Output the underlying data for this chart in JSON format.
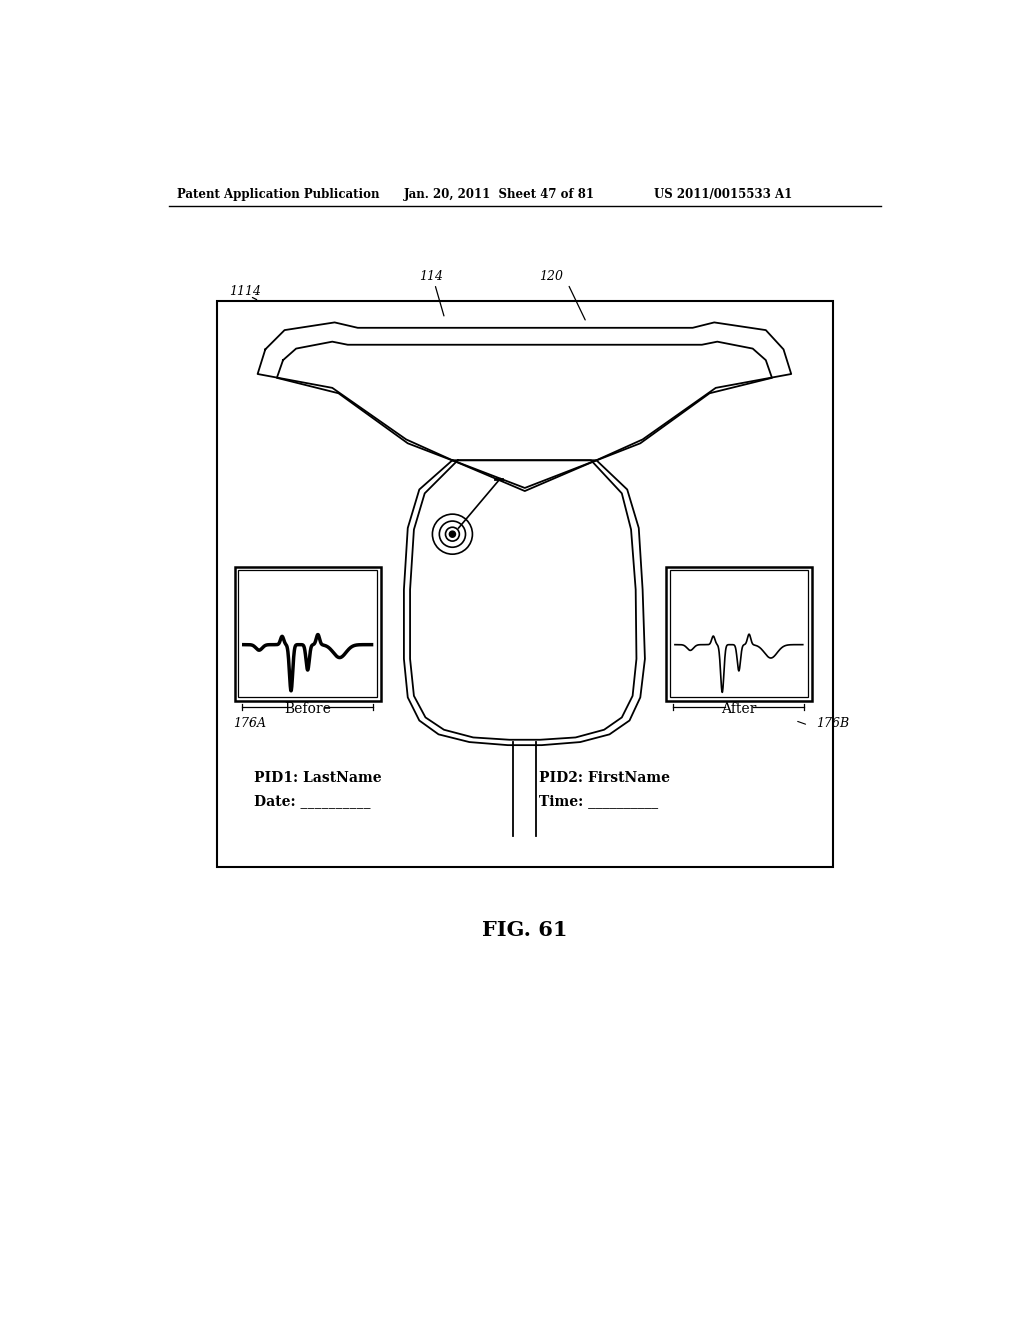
{
  "title": "FIG. 61",
  "header_left": "Patent Application Publication",
  "header_mid": "Jan. 20, 2011  Sheet 47 of 81",
  "header_right": "US 2011/0015533 A1",
  "label_1114": "1114",
  "label_114": "114",
  "label_120": "120",
  "label_176A": "176A",
  "label_176B": "176B",
  "text_before": "Before",
  "text_after": "After",
  "text_pid1": "PID1: LastName",
  "text_date": "Date: __________",
  "text_pid2": "PID2: FirstName",
  "text_time": "Time: __________",
  "bg_color": "#ffffff",
  "line_color": "#000000"
}
